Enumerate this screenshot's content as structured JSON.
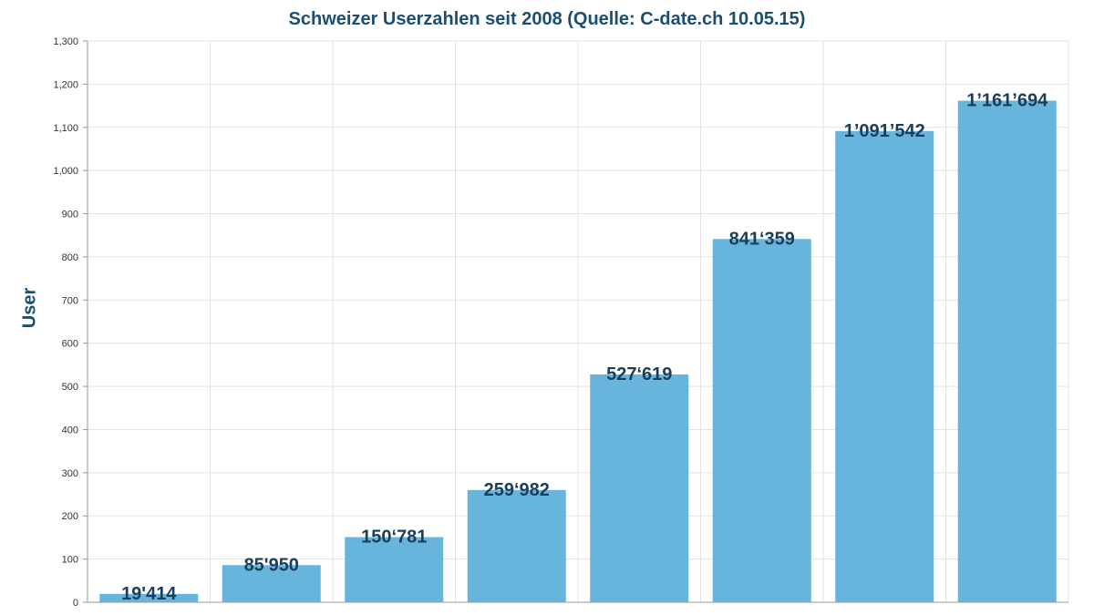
{
  "chart_data": {
    "type": "bar",
    "title": "Schweizer Userzahlen seit 2008 (Quelle: C-date.ch 10.05.15)",
    "xlabel": "",
    "ylabel": "User",
    "ylim": [
      0,
      1300
    ],
    "yticks": [
      "0",
      "100",
      "200",
      "300",
      "400",
      "500",
      "600",
      "700",
      "800",
      "900",
      "1,000",
      "1,100",
      "1,200",
      "1,300"
    ],
    "categories": [
      "",
      "",
      "",
      "",
      "",
      "",
      "",
      ""
    ],
    "values": [
      19.414,
      85.95,
      150.781,
      259.982,
      527.619,
      841.359,
      1091.542,
      1161.694
    ],
    "data_labels": [
      "19'414",
      "85'950",
      "150‘781",
      "259‘982",
      "527‘619",
      "841‘359",
      "1’091’542",
      "1’161’694"
    ],
    "grid": true,
    "colors": {
      "bar": "#67b5dc",
      "title": "#1a4f72",
      "label": "#1a3f5c",
      "grid": "#e3e3e3",
      "axis": "#999999"
    }
  }
}
